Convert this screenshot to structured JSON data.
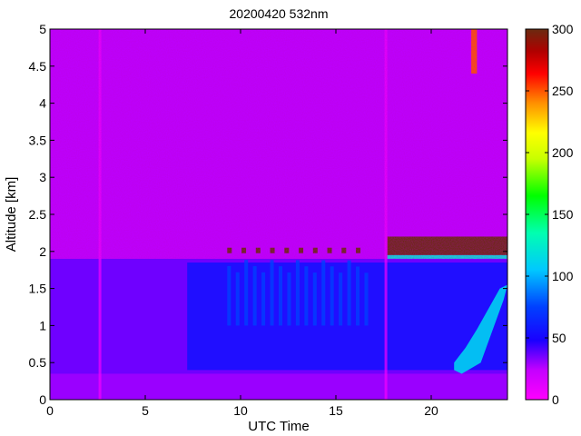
{
  "chart_data": {
    "type": "heatmap",
    "title": "20200420 532nm",
    "xlabel": "UTC Time",
    "ylabel": "Altitude [km]",
    "xlim": [
      0,
      24
    ],
    "ylim": [
      0,
      5
    ],
    "x_ticks": [
      "0",
      "5",
      "10",
      "15",
      "20"
    ],
    "y_ticks": [
      "0",
      "0.5",
      "1",
      "1.5",
      "2",
      "2.5",
      "3",
      "3.5",
      "4",
      "4.5",
      "5"
    ],
    "colorbar": {
      "range": [
        0,
        300
      ],
      "ticks": [
        "0",
        "50",
        "100",
        "150",
        "200",
        "250",
        "300"
      ],
      "colormap": "jet-like: magenta -> blue -> cyan -> green -> yellow -> orange -> red -> dark red"
    },
    "features": {
      "background_value": 25,
      "surface_layer": {
        "alt_range_km": [
          0,
          0.35
        ],
        "value": 30
      },
      "boundary_layer": {
        "time_range_utc": [
          0,
          24
        ],
        "top_km": 1.9,
        "value": 55
      },
      "cloud_tops": {
        "time_range_utc": [
          9.3,
          16.5
        ],
        "alt_km": 2.0,
        "value": 300
      },
      "cloud_layer": {
        "time_range_utc": [
          17.7,
          24
        ],
        "alt_range_km": [
          1.95,
          2.2
        ],
        "value": 300
      },
      "upper_cloud": {
        "time_range_utc": [
          22.1,
          22.4
        ],
        "alt_range_km": [
          4.4,
          5
        ],
        "value": 250
      },
      "aerosol_plume": {
        "time_range_utc": [
          21,
          24
        ],
        "alt_range_km": [
          0.4,
          1.55
        ],
        "value": 110
      },
      "gaps_utc": [
        2.6,
        17.6
      ]
    }
  }
}
